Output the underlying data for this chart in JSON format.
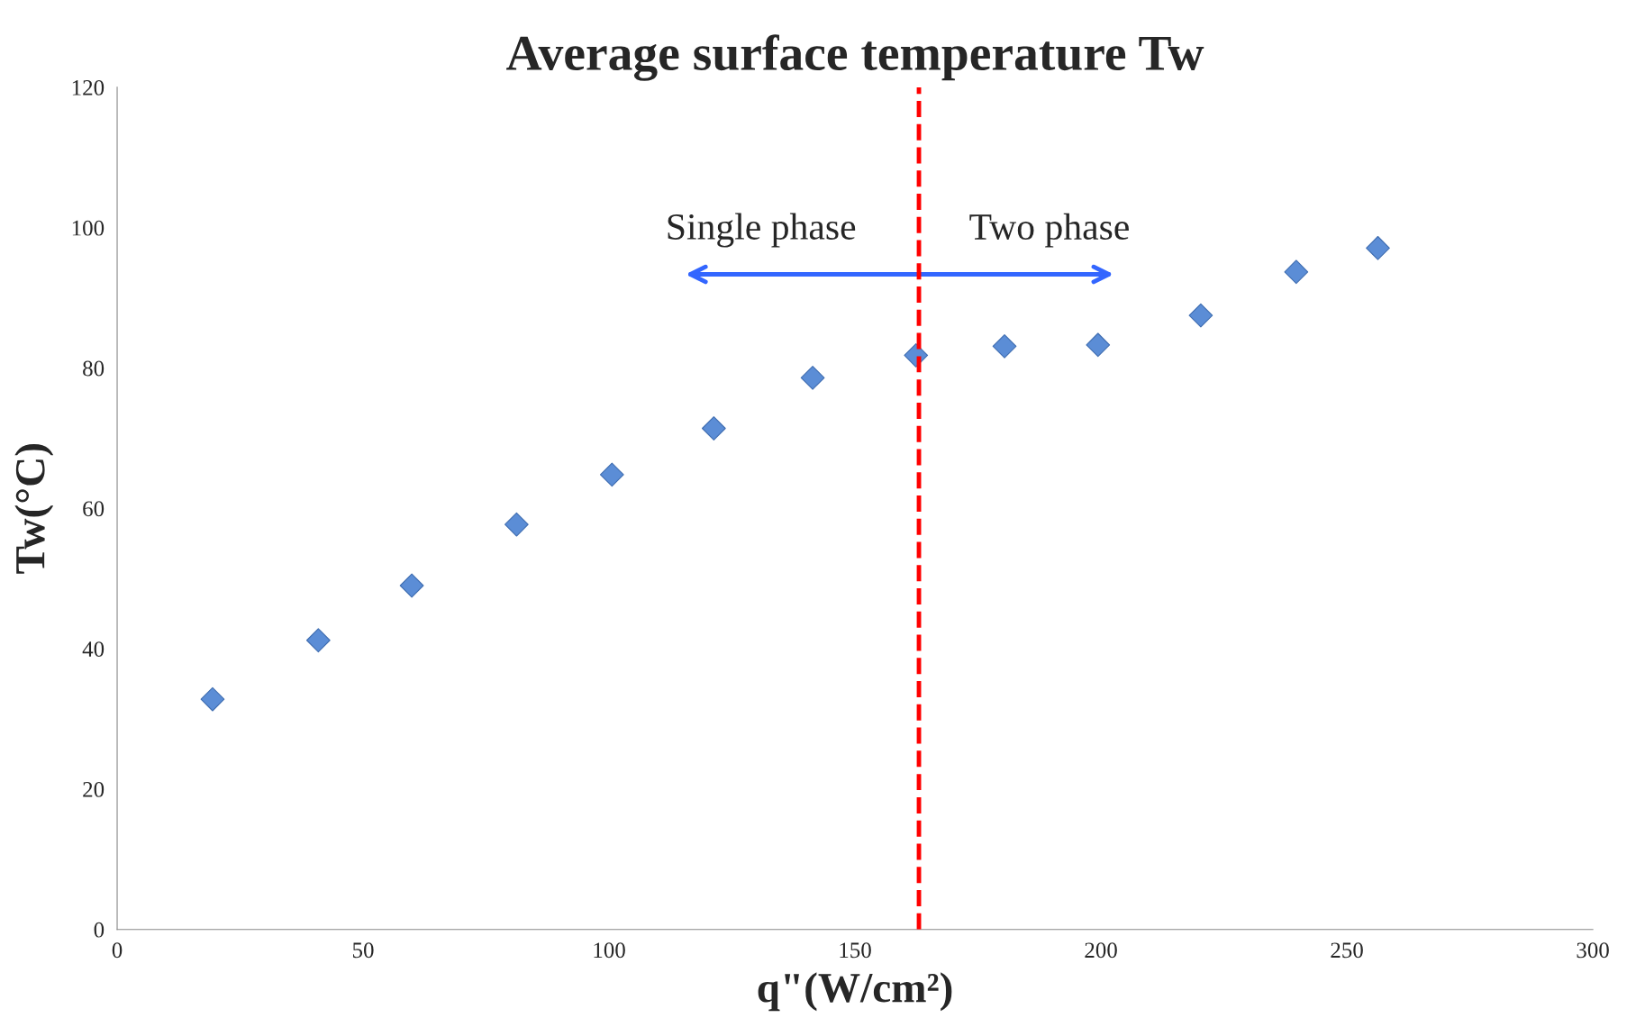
{
  "chart_data": {
    "type": "scatter",
    "title": "Average surface temperature Tw",
    "xlabel": "q\"(W/cm²)",
    "ylabel": "Tw(°C)",
    "x": [
      19.4,
      40.9,
      59.9,
      81.2,
      100.6,
      121.3,
      141.4,
      162.4,
      180.4,
      199.4,
      220.3,
      239.7,
      256.3
    ],
    "series": [
      {
        "color": "#5b8dd6",
        "values": [
          32.8,
          41.2,
          49.0,
          57.7,
          64.8,
          71.4,
          78.6,
          81.8,
          83.1,
          83.3,
          87.5,
          93.7,
          97.1
        ]
      }
    ],
    "xlim": [
      0,
      300
    ],
    "xticks": [
      0,
      50,
      100,
      150,
      200,
      250,
      300
    ],
    "ylim": [
      0,
      120
    ],
    "yticks": [
      0,
      20,
      40,
      60,
      80,
      100,
      120
    ],
    "marker": "diamond",
    "grid": false,
    "legend": false,
    "ref_lines": [
      {
        "axis": "x",
        "value": 163,
        "color": "#ff0000",
        "line_style": "dashed"
      }
    ],
    "annotations": [
      "Single phase",
      "Two phase"
    ]
  }
}
